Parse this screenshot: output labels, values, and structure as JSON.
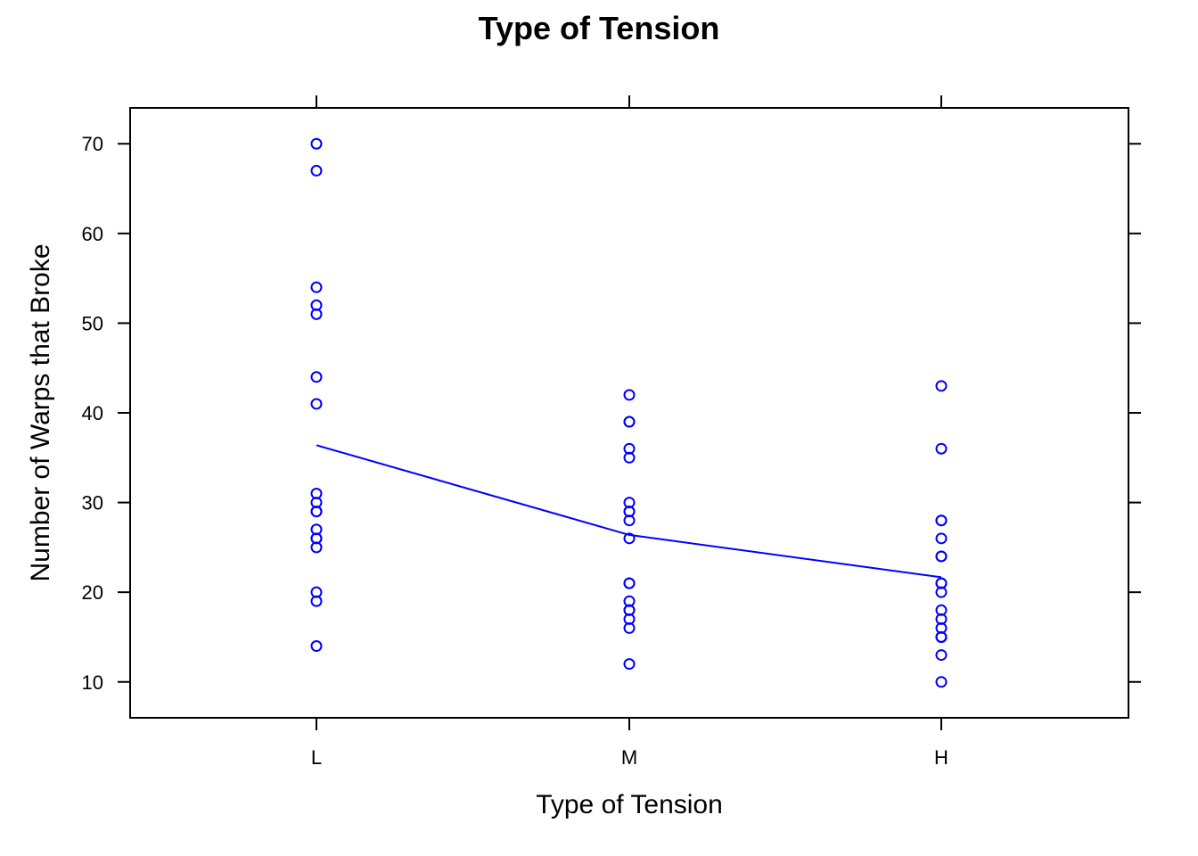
{
  "chart_data": {
    "type": "scatter",
    "title": "Type of Tension",
    "xlabel": "Type of Tension",
    "ylabel": "Number of Warps that Broke",
    "categories": [
      "L",
      "M",
      "H"
    ],
    "ylim": [
      6,
      74
    ],
    "yticks": [
      10,
      20,
      30,
      40,
      50,
      60,
      70
    ],
    "grid": false,
    "series": [
      {
        "category": "L",
        "values": [
          26,
          30,
          54,
          25,
          70,
          52,
          51,
          26,
          67,
          27,
          14,
          29,
          19,
          29,
          31,
          41,
          20,
          44
        ]
      },
      {
        "category": "M",
        "values": [
          18,
          21,
          29,
          17,
          12,
          18,
          35,
          30,
          36,
          42,
          26,
          19,
          16,
          39,
          28,
          21,
          39,
          29
        ]
      },
      {
        "category": "H",
        "values": [
          36,
          21,
          24,
          18,
          10,
          43,
          28,
          15,
          26,
          20,
          21,
          24,
          17,
          13,
          15,
          15,
          16,
          28
        ]
      }
    ],
    "mean_line": {
      "x": [
        "L",
        "M",
        "H"
      ],
      "y": [
        36.39,
        26.39,
        21.67
      ]
    },
    "colors": {
      "points": "#0000ff",
      "line": "#0000ff",
      "frame": "#000000"
    }
  }
}
